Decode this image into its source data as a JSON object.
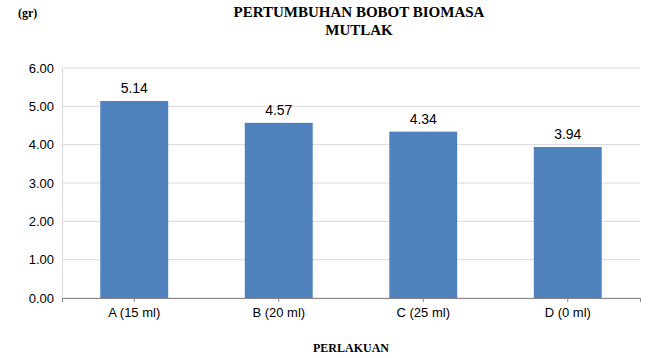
{
  "chart_data": {
    "type": "bar",
    "title": "PERTUMBUHAN BOBOT BIOMASA MUTLAK",
    "y_label": "(gr)",
    "x_label": "PERLAKUAN",
    "categories": [
      "A (15 ml)",
      "B (20 ml)",
      "C (25 ml)",
      "D (0 ml)"
    ],
    "values": [
      5.14,
      4.57,
      4.34,
      3.94
    ],
    "color": "#4f81bd",
    "ylim": [
      0,
      6
    ],
    "yticks": [
      {
        "value": 0,
        "label": "0.00"
      },
      {
        "value": 1,
        "label": "1.00"
      },
      {
        "value": 2,
        "label": "2.00"
      },
      {
        "value": 3,
        "label": "3.00"
      },
      {
        "value": 4,
        "label": "4.00"
      },
      {
        "value": 5,
        "label": "5.00"
      },
      {
        "value": 6,
        "label": "6.00"
      }
    ],
    "grid": true,
    "data_labels": true
  }
}
